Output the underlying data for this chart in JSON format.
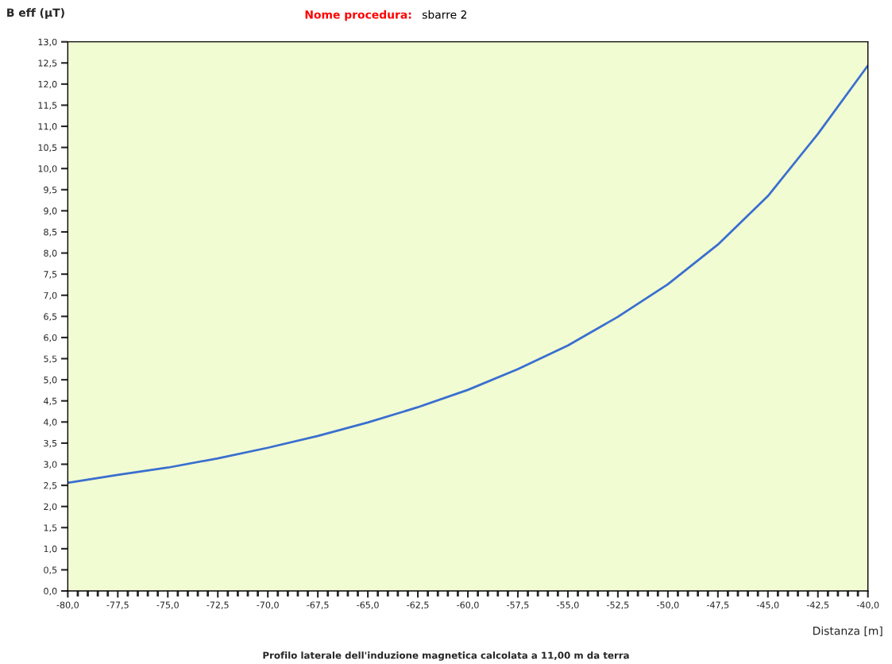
{
  "chart_data": {
    "type": "line",
    "title": "Nome procedura:",
    "subtitle": "sbarre 2",
    "xlabel": "Distanza [m]",
    "ylabel": "B eff (µT)",
    "annotations": [
      "Profilo laterale dell'induzione magnetica calcolata a 11,00 m da terra"
    ],
    "x": [
      -80,
      -77.5,
      -75,
      -72.5,
      -70,
      -67.5,
      -65,
      -62.5,
      -60,
      -57.5,
      -55,
      -52.5,
      -50,
      -47.5,
      -45,
      -42.5,
      -40
    ],
    "series": [
      {
        "color": "#3a6fd0",
        "values": [
          2.56,
          2.75,
          2.92,
          3.14,
          3.39,
          3.67,
          3.99,
          4.35,
          4.76,
          5.25,
          5.81,
          6.49,
          7.26,
          8.2,
          9.35,
          10.82,
          12.44
        ]
      }
    ],
    "xlim": [
      -80,
      -40
    ],
    "xticks": [
      {
        "value": -80,
        "label": "-80,0"
      },
      {
        "value": -77.5,
        "label": "-77,5"
      },
      {
        "value": -75,
        "label": "-75,0"
      },
      {
        "value": -72.5,
        "label": "-72,5"
      },
      {
        "value": -70,
        "label": "-70,0"
      },
      {
        "value": -67.5,
        "label": "-67,5"
      },
      {
        "value": -65,
        "label": "-65,0"
      },
      {
        "value": -62.5,
        "label": "-62,5"
      },
      {
        "value": -60,
        "label": "-60,0"
      },
      {
        "value": -57.5,
        "label": "-57,5"
      },
      {
        "value": -55,
        "label": "-55,0"
      },
      {
        "value": -52.5,
        "label": "-52,5"
      },
      {
        "value": -50,
        "label": "-50,0"
      },
      {
        "value": -47.5,
        "label": "-47,5"
      },
      {
        "value": -45,
        "label": "-45,0"
      },
      {
        "value": -42.5,
        "label": "-42,5"
      },
      {
        "value": -40,
        "label": "-40,0"
      }
    ],
    "ylim": [
      0,
      13
    ],
    "yticks": [
      {
        "value": 0,
        "label": "0,0"
      },
      {
        "value": 0.5,
        "label": "0,5"
      },
      {
        "value": 1,
        "label": "1,0"
      },
      {
        "value": 1.5,
        "label": "1,5"
      },
      {
        "value": 2,
        "label": "2,0"
      },
      {
        "value": 2.5,
        "label": "2,5"
      },
      {
        "value": 3,
        "label": "3,0"
      },
      {
        "value": 3.5,
        "label": "3,5"
      },
      {
        "value": 4,
        "label": "4,0"
      },
      {
        "value": 4.5,
        "label": "4,5"
      },
      {
        "value": 5,
        "label": "5,0"
      },
      {
        "value": 5.5,
        "label": "5,5"
      },
      {
        "value": 6,
        "label": "6,0"
      },
      {
        "value": 6.5,
        "label": "6,5"
      },
      {
        "value": 7,
        "label": "7,0"
      },
      {
        "value": 7.5,
        "label": "7,5"
      },
      {
        "value": 8,
        "label": "8,0"
      },
      {
        "value": 8.5,
        "label": "8,5"
      },
      {
        "value": 9,
        "label": "9,0"
      },
      {
        "value": 9.5,
        "label": "9,5"
      },
      {
        "value": 10,
        "label": "10,0"
      },
      {
        "value": 10.5,
        "label": "10,5"
      },
      {
        "value": 11,
        "label": "11,0"
      },
      {
        "value": 11.5,
        "label": "11,5"
      },
      {
        "value": 12,
        "label": "12,0"
      },
      {
        "value": 12.5,
        "label": "12,5"
      },
      {
        "value": 13,
        "label": "13,0"
      }
    ],
    "grid": false,
    "legend": false,
    "marker": "none",
    "line_style": "solid"
  }
}
